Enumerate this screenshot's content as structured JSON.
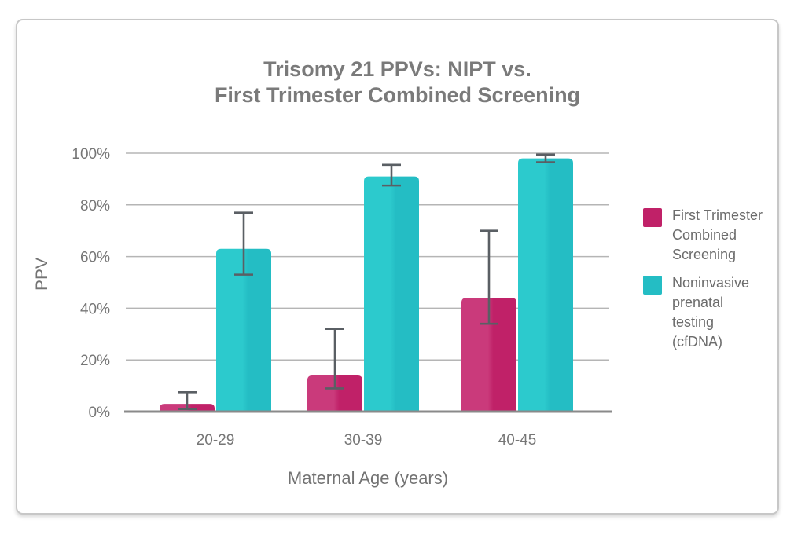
{
  "chart_data": {
    "type": "bar",
    "title": "Trisomy 21 PPVs: NIPT vs. First Trimester Combined Screening",
    "title_lines": [
      "Trisomy 21 PPVs: NIPT vs.",
      "First Trimester Combined Screening"
    ],
    "categories": [
      "20-29",
      "30-39",
      "40-45"
    ],
    "series": [
      {
        "id": "fts",
        "name": "First Trimester Combined Screening",
        "color": "#c02168",
        "color_light": "#ca3a7b",
        "values": [
          3,
          14,
          44
        ],
        "error_low": [
          1,
          9,
          34
        ],
        "error_high": [
          7.5,
          32,
          70
        ]
      },
      {
        "id": "nipt",
        "name": "Noninvasive prenatal testing (cfDNA)",
        "color": "#24bdc4",
        "color_light": "#2ccacd",
        "values": [
          63,
          91,
          98
        ],
        "error_low": [
          53,
          87.5,
          96.5
        ],
        "error_high": [
          77,
          95.5,
          99.5
        ]
      }
    ],
    "xlabel": "Maternal Age (years)",
    "ylabel": "PPV",
    "ylim": [
      0,
      100
    ],
    "yticks": [
      0,
      20,
      40,
      60,
      80,
      100
    ],
    "ytick_suffix": "%",
    "grid": true,
    "legend_position": "right",
    "error_bar_color": "#5a5f64",
    "gridline_color": "#b5b5b5",
    "axis_line_color": "#8a8a8a"
  }
}
